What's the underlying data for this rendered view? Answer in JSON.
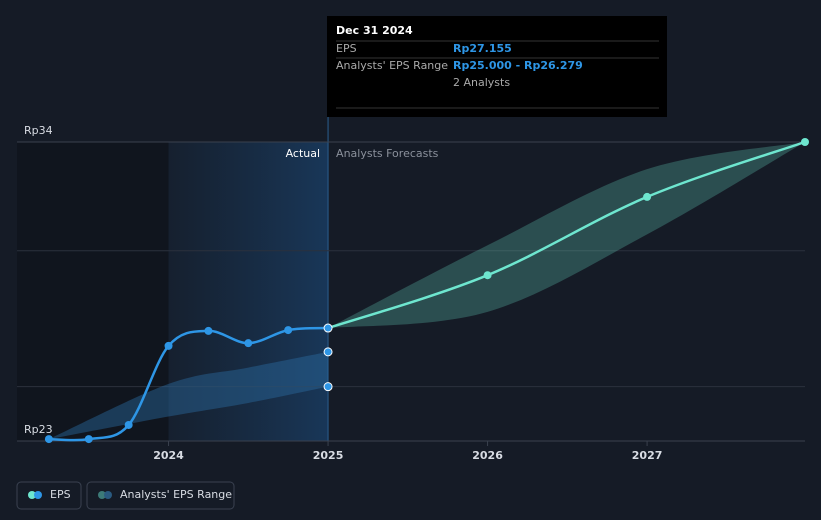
{
  "chart_data": {
    "type": "line",
    "xlim": [
      2023.05,
      2027.99
    ],
    "xticks": [
      2024,
      2025,
      2026,
      2027
    ],
    "ylim": [
      23,
      34
    ],
    "yticks": [
      {
        "value": 23,
        "label": "Rp23"
      },
      {
        "value": 34,
        "label": "Rp34"
      }
    ],
    "gridlines": [
      25,
      30
    ],
    "actual_label": "Actual",
    "forecast_label": "Analysts Forecasts",
    "series": [
      {
        "name": "EPS",
        "color": "#2e96e6",
        "x": [
          2023.25,
          2023.5,
          2023.75,
          2024.0,
          2024.25,
          2024.5,
          2024.75,
          2025.0
        ],
        "values": [
          23.07,
          23.07,
          23.59,
          26.5,
          27.05,
          26.6,
          27.08,
          27.155
        ]
      }
    ],
    "range": {
      "name": "Analysts' EPS Range",
      "color": "#2a6aa0",
      "x": [
        2023.25,
        2024.0,
        2024.5,
        2025.0
      ],
      "low": [
        23.07,
        23.9,
        24.4,
        25.0
      ],
      "high": [
        23.07,
        25.1,
        25.7,
        26.279
      ]
    },
    "forecast": {
      "color": "#6ee6cf",
      "x": [
        2025.0,
        2026.0,
        2027.0,
        2027.99
      ],
      "values": [
        27.155,
        29.1,
        31.98,
        34
      ],
      "low": [
        27.155,
        27.75,
        30.6,
        34
      ],
      "high": [
        27.155,
        30.2,
        33.0,
        34
      ]
    },
    "tooltip": {
      "date": "Dec 31 2024",
      "eps_label": "EPS",
      "eps_value": "Rp27.155",
      "range_label": "Analysts' EPS Range",
      "range_value": "Rp25.000 - Rp26.279",
      "analysts": "2 Analysts"
    }
  }
}
